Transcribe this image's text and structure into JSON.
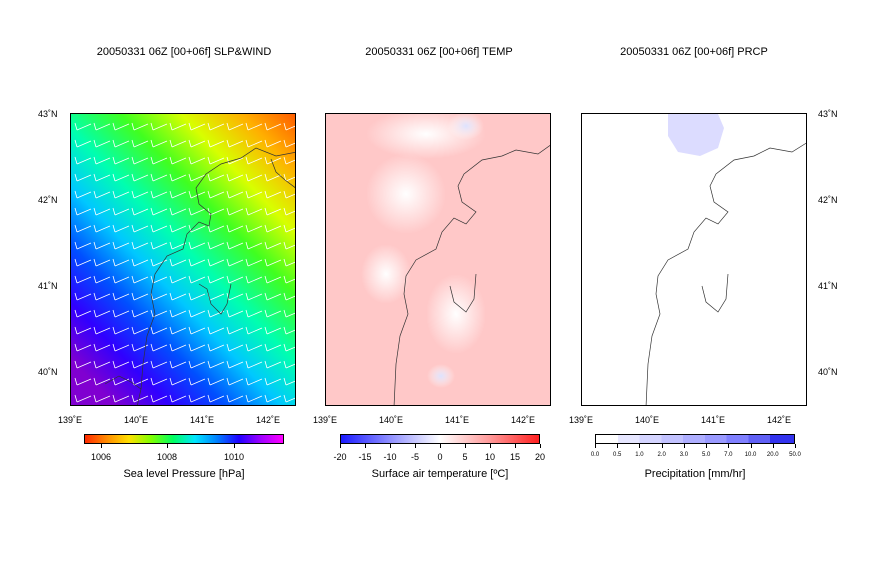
{
  "panels": [
    {
      "title": "20050331 06Z [00+06f] SLP&WIND",
      "colorbar_label": "Sea level Pressure [hPa]",
      "ticks": [
        "1006",
        "1008",
        "1010"
      ]
    },
    {
      "title": "20050331 06Z [00+06f] TEMP",
      "colorbar_label": "Surface air temperature [ºC]",
      "ticks": [
        "-20",
        "-15",
        "-10",
        "-5",
        "0",
        "5",
        "10",
        "15",
        "20"
      ]
    },
    {
      "title": "20050331 06Z [00+06f] PRCP",
      "colorbar_label": "Precipitation [mm/hr]",
      "ticks": [
        "0.0",
        "0.5",
        "1.0",
        "2.0",
        "3.0",
        "5.0",
        "7.0",
        "10.0",
        "20.0",
        "50.0"
      ]
    }
  ],
  "lat_labels": [
    "43˚N",
    "42˚N",
    "41˚N",
    "40˚N"
  ],
  "lon_labels": [
    "139˚E",
    "140˚E",
    "141˚E",
    "142˚E"
  ],
  "colors": {
    "slp_low": "#ff2a00",
    "slp_mid": "#00e6ff",
    "slp_high": "#ff00ff",
    "temp_warm": "#ff3333",
    "temp_cold": "#1a1aff",
    "prcp_light": "#ccccff",
    "prcp_heavy": "#3333ee"
  }
}
